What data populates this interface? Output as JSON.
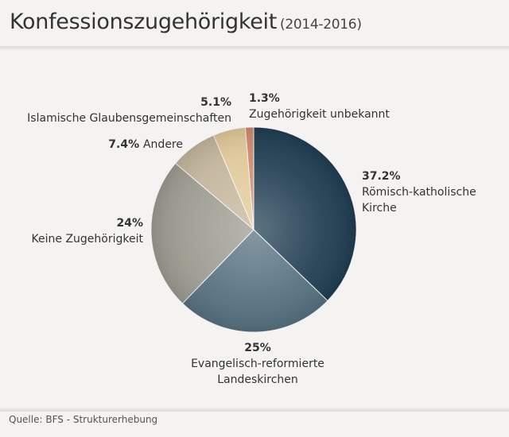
{
  "header": {
    "title": "Konfessionszugehörigkeit",
    "subtitle": "(2014-2016)"
  },
  "footer": {
    "source": "Quelle: BFS - Strukturerhebung"
  },
  "chart_data": {
    "type": "pie",
    "title": "Konfessionszugehörigkeit",
    "subtitle": "(2014-2016)",
    "slices": [
      {
        "label": "Römisch-katholische Kirche",
        "label_lines": [
          "Römisch-katholische",
          "Kirche"
        ],
        "value": 37.2,
        "value_label": "37.2%",
        "color": "#1f3d51"
      },
      {
        "label": "Evangelisch-reformierte Landeskirchen",
        "label_lines": [
          "Evangelisch-reformierte",
          "Landeskirchen"
        ],
        "value": 25,
        "value_label": "25%",
        "color": "#56707f"
      },
      {
        "label": "Keine Zugehörigkeit",
        "label_lines": [
          "Keine Zugehörigkeit"
        ],
        "value": 24,
        "value_label": "24%",
        "color": "#9a9a8f"
      },
      {
        "label": "Andere",
        "label_lines": [
          "Andere"
        ],
        "value": 7.4,
        "value_label": "7.4%",
        "color": "#c3b59b"
      },
      {
        "label": "Islamische Glaubensgemeinschaften",
        "label_lines": [
          "Islamische Glaubensgemeinschaften"
        ],
        "value": 5.1,
        "value_label": "5.1%",
        "color": "#e1c898"
      },
      {
        "label": "Zugehörigkeit unbekannt",
        "label_lines": [
          "Zugehörigkeit unbekannt"
        ],
        "value": 1.3,
        "value_label": "1.3%",
        "color": "#cf8a6a"
      }
    ]
  }
}
